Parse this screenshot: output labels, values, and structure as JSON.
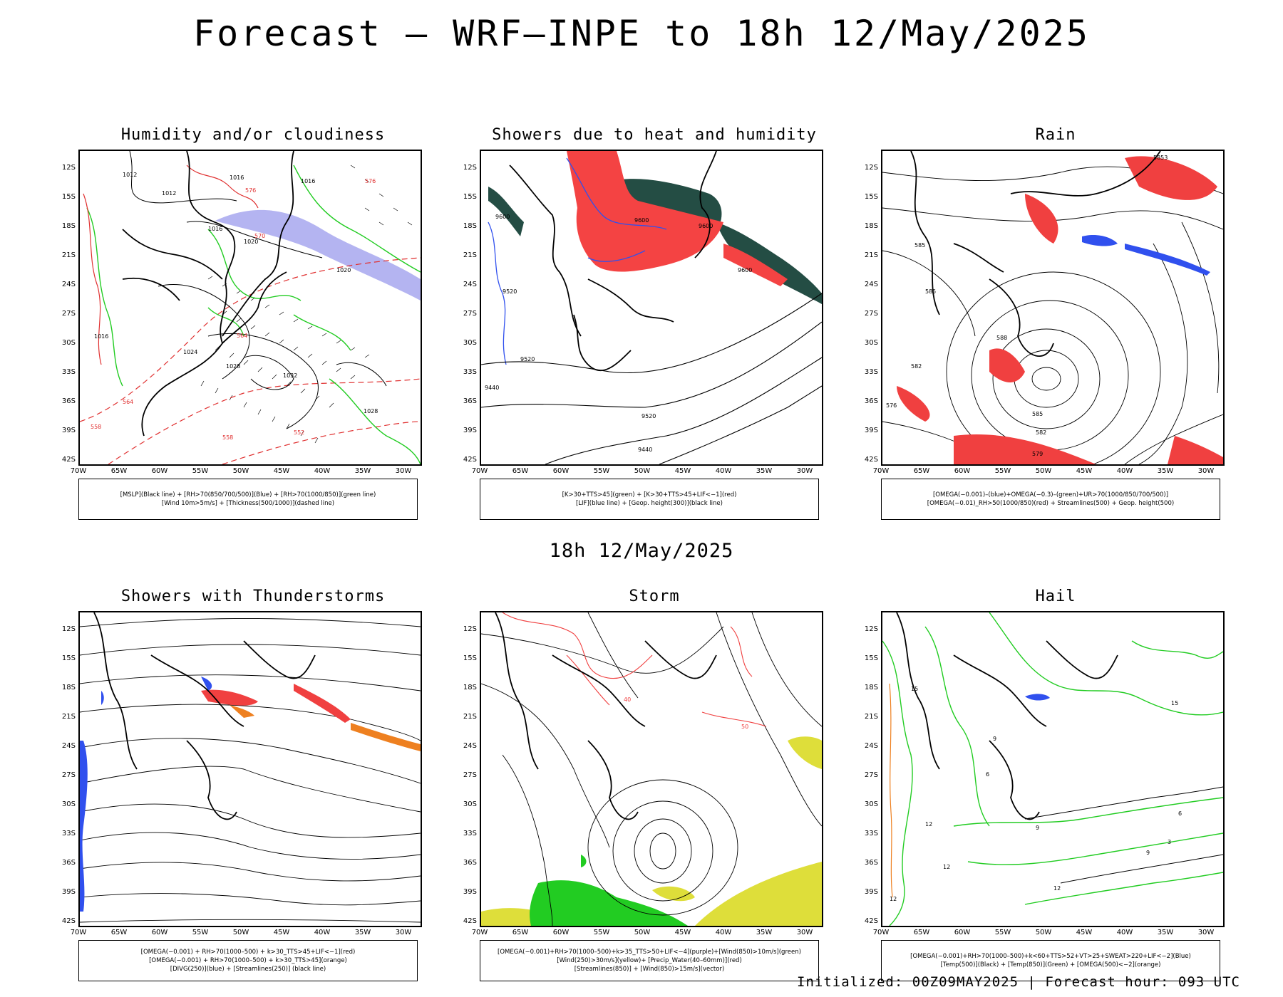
{
  "title": "Forecast – WRF–INPE to 18h 12/May/2025",
  "subtitle": "18h 12/May/2025",
  "footer": "Initialized: 00Z09MAY2025 | Forecast hour: 093 UTC",
  "lat_labels": [
    "12S",
    "15S",
    "18S",
    "21S",
    "24S",
    "27S",
    "30S",
    "33S",
    "36S",
    "39S",
    "42S"
  ],
  "lon_labels": [
    "70W",
    "65W",
    "60W",
    "55W",
    "50W",
    "45W",
    "40W",
    "35W",
    "30W"
  ],
  "panels": [
    {
      "title": "Humidity and/or cloudiness",
      "legend": [
        "[MSLP](Black line) + [RH>70(850/700/500)](Blue) + [RH>70(1000/850)](green line)",
        "[Wind 10m>5m/s] + [Thickness(500/1000)](dashed line)"
      ],
      "contour_labels": [
        "1012",
        "1012",
        "1016",
        "1016",
        "1016",
        "1020",
        "1020",
        "1024",
        "1028",
        "1032",
        "1028",
        "1016",
        "576",
        "576",
        "570",
        "564",
        "564",
        "558",
        "552",
        "558"
      ]
    },
    {
      "title": "Showers due to heat and humidity",
      "legend": [
        "[K>30+TTS>45](green) + [K>30+TTS>45+LIF<−1](red)",
        "[LIF](blue line) + [Geop. height(300)](black line)"
      ],
      "contour_labels": [
        "9600",
        "9600",
        "9600",
        "9520",
        "9520",
        "9520",
        "9440",
        "9440",
        "9600"
      ]
    },
    {
      "title": "Rain",
      "legend": [
        "[OMEGA(−0.001)–(blue)+OMEGA(−0.3)–(green)+UR>70(1000/850/700/500)]",
        "[OMEGA(−0.01)_RH>50(1000/850)(red) + Streamlines(500) + Geop. height(500)"
      ],
      "contour_labels": [
        "585",
        "588",
        "582",
        "585",
        "582",
        "579",
        "585",
        "576",
        "5853"
      ]
    },
    {
      "title": "Showers with Thunderstorms",
      "legend": [
        "[OMEGA(−0.001) + RH>70(1000–500) + k>30_TTS>45+LIF<−1](red)",
        "[OMEGA(−0.001) + RH>70(1000–500) + k>30_TTS>45](orange)",
        "[DIVG(250)](blue) + [Streamlines(250)] (black line)"
      ],
      "contour_labels": []
    },
    {
      "title": "Storm",
      "legend": [
        "[OMEGA(−0.001)+RH>70(1000–500)+k>35_TTS>50+LIF<−4](purple)+[Wind(850)>10m/s](green)",
        "[Wind(250)>30m/s](yellow)+ [Precip_Water(40–60mm)](red)",
        "[Streamlines(850)] + [Wind(850)>15m/s](vector)"
      ],
      "contour_labels": [
        "40",
        "50"
      ]
    },
    {
      "title": "Hail",
      "legend": [
        "[OMEGA(−0.001)+RH>70(1000–500)+k<60+TTS>52+VT>25+SWEAT>220+LIF<−2](Blue)",
        "[Temp(500)](Black) + [Temp(850)](Green) + [OMEGA(500)<−2](orange)"
      ],
      "contour_labels": [
        "15",
        "12",
        "12",
        "9",
        "6",
        "15",
        "12",
        "9",
        "12",
        "9",
        "6",
        "3"
      ]
    }
  ]
}
